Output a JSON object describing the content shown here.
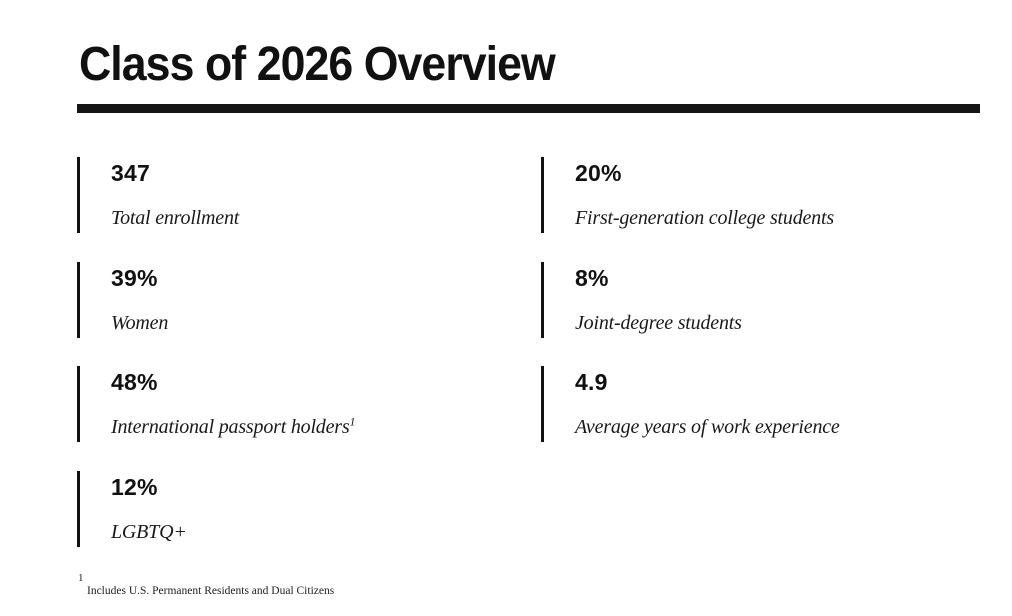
{
  "page": {
    "title": "Class of 2026 Overview"
  },
  "stats": [
    {
      "value": "347",
      "label": "Total enrollment",
      "sup": ""
    },
    {
      "value": "20%",
      "label": "First-generation college students",
      "sup": ""
    },
    {
      "value": "39%",
      "label": "Women",
      "sup": ""
    },
    {
      "value": "8%",
      "label": "Joint-degree students",
      "sup": ""
    },
    {
      "value": "48%",
      "label": "International passport holders",
      "sup": "1"
    },
    {
      "value": "4.9",
      "label": "Average years of work experience",
      "sup": ""
    },
    {
      "value": "12%",
      "label": "LGBTQ+",
      "sup": ""
    }
  ],
  "footnote": {
    "marker": "1",
    "text": "Includes U.S. Permanent Residents and Dual Citizens"
  },
  "colors": {
    "background": "#ffffff",
    "text": "#111111",
    "accent_bar": "#111111",
    "rule": "#151515"
  }
}
